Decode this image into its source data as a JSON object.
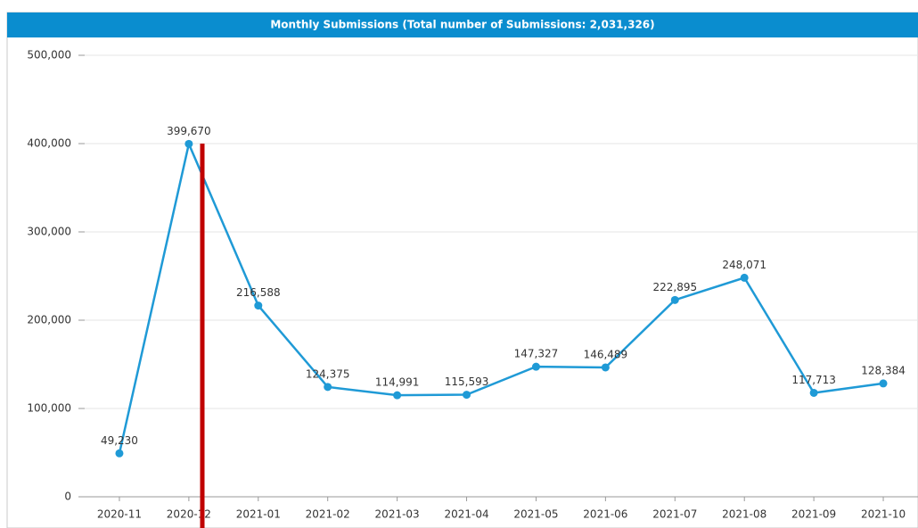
{
  "chart_data": {
    "type": "line",
    "title": "Monthly Submissions (Total number of Submissions: 2,031,326)",
    "categories": [
      "2020-11",
      "2020-12",
      "2021-01",
      "2021-02",
      "2021-03",
      "2021-04",
      "2021-05",
      "2021-06",
      "2021-07",
      "2021-08",
      "2021-09",
      "2021-10"
    ],
    "values": [
      49230,
      399670,
      216588,
      124375,
      114991,
      115593,
      147327,
      146489,
      222895,
      248071,
      117713,
      128384
    ],
    "value_labels": [
      "49,230",
      "399,670",
      "216,588",
      "124,375",
      "114,991",
      "115,593",
      "147,327",
      "146,489",
      "222,895",
      "248,071",
      "117,713",
      "128,384"
    ],
    "color": "#1f9ad6",
    "ylim": [
      0,
      500000
    ],
    "yticks": [
      0,
      {
        "value": 100000,
        "label": "100,000"
      },
      {
        "value": 200000,
        "label": "200,000"
      },
      {
        "value": 300000,
        "label": "300,000"
      },
      {
        "value": 400000,
        "label": "400,000"
      },
      {
        "value": 500000,
        "label": "500,000"
      }
    ],
    "grid": true
  }
}
